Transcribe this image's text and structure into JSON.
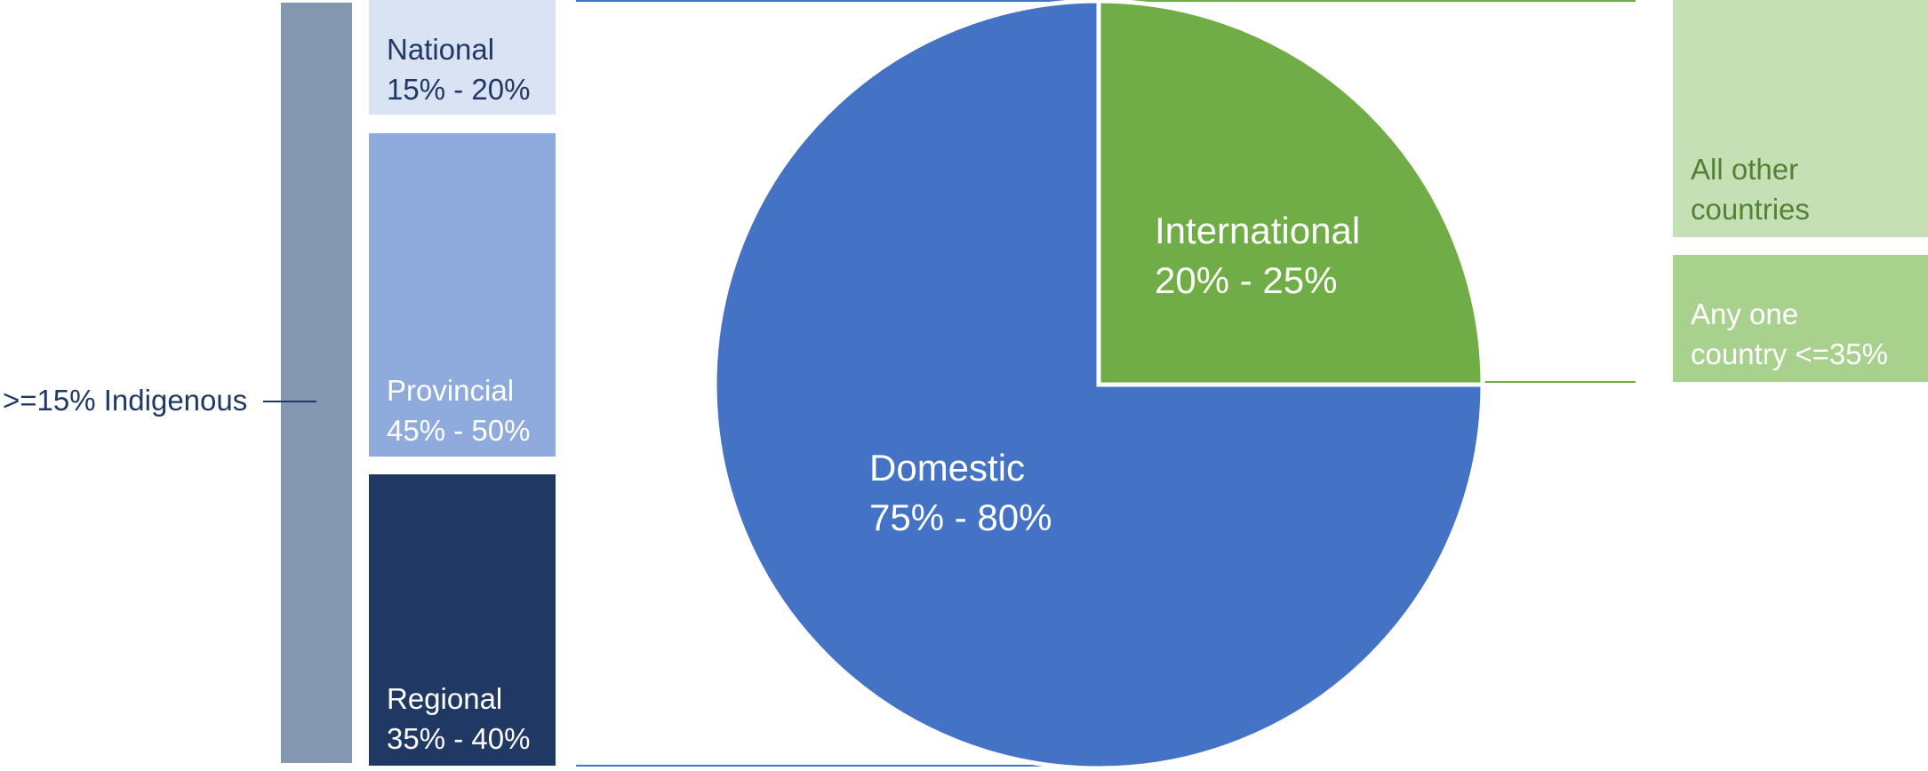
{
  "chart_data": {
    "type": "pie",
    "slices": [
      {
        "label": "Domestic",
        "range": "75% - 80%",
        "value": 75,
        "color": "#4472c4"
      },
      {
        "label": "International",
        "range": "20% - 25%",
        "value": 25,
        "color": "#70ad47"
      }
    ],
    "domestic_breakdown": [
      {
        "label": "National",
        "range": "15% - 20%",
        "color": "#dae3f3"
      },
      {
        "label": "Provincial",
        "range": "45% - 50%",
        "color": "#8faadc"
      },
      {
        "label": "Regional",
        "range": "35% - 40%",
        "color": "#203864"
      }
    ],
    "indigenous": {
      "label": ">=15% Indigenous",
      "color": "#8497b0"
    },
    "international_breakdown": [
      {
        "label_line1": "All other",
        "label_line2": "countries",
        "color": "#c5e0b4"
      },
      {
        "label_line1": "Any one",
        "label_line2": "country <=35%",
        "color": "#a9d18e"
      }
    ]
  },
  "colors": {
    "text_dark_blue": "#203864",
    "text_green": "#548235",
    "connector_blue": "#4472c4",
    "connector_green": "#70ad47"
  }
}
